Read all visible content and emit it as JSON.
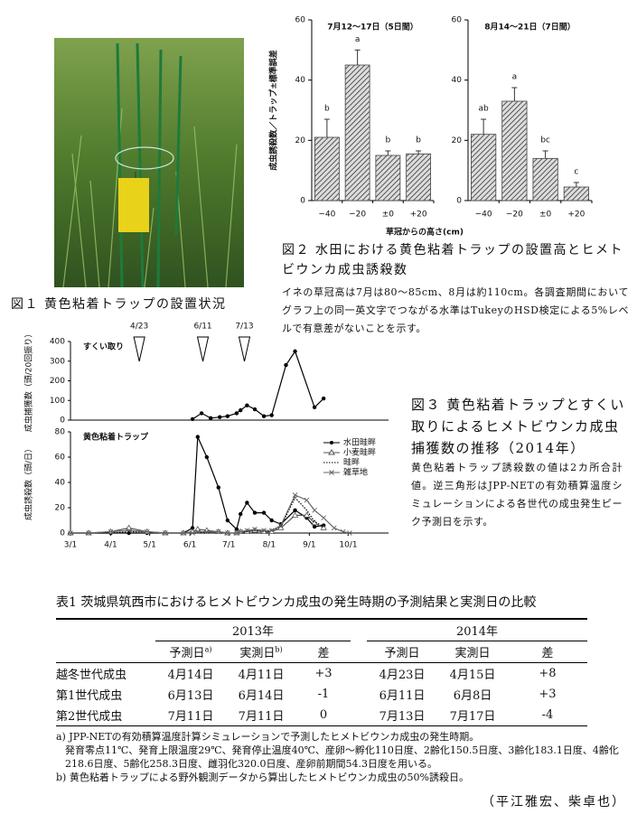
{
  "figure1": {
    "caption": "図１ 黄色粘着トラップの設置状況"
  },
  "figure2": {
    "caption": "図２ 水田における黄色粘着トラップの設置高とヒメトビウンカ成虫誘殺数",
    "note": "イネの草冠高は7月は80〜85cm、8月は約110cm。各調査期間においてグラフ上の同一英文字でつながる水準はTukeyのHSD検定による5%レベルで有意差がないことを示す。",
    "x_label": "草冠からの高さ(cm)"
  },
  "figure3": {
    "caption": "図３ 黄色粘着トラップとすくい取りによるヒメトビウンカ成虫捕獲数の推移（2014年）",
    "note": "黄色粘着トラップ誘殺数の値は2カ所合計値。逆三角形はJPP-NETの有効積算温度シミュレーションによる各世代の成虫発生ピーク予測日を示す。"
  },
  "chart_data": [
    {
      "type": "bar",
      "title": "7月12〜17日（5日間）",
      "y_label": "成虫誘殺数／トラップ±標準誤差",
      "categories": [
        "−40",
        "−20",
        "±0",
        "+20"
      ],
      "values": [
        21,
        45,
        15,
        15.5
      ],
      "errors": [
        6,
        5,
        1.5,
        1
      ],
      "annotations": [
        "b",
        "a",
        "b",
        "b"
      ],
      "color": "#444",
      "ylim": [
        0,
        60
      ],
      "yticks": [
        0,
        20,
        40,
        60
      ]
    },
    {
      "type": "bar",
      "title": "8月14〜21日（7日間）",
      "categories": [
        "−40",
        "−20",
        "±0",
        "+20"
      ],
      "values": [
        22,
        33,
        14,
        4.5
      ],
      "errors": [
        5,
        4.5,
        2.5,
        1.5
      ],
      "annotations": [
        "ab",
        "a",
        "bc",
        "c"
      ],
      "color": "#444",
      "ylim": [
        0,
        60
      ],
      "yticks": [
        0,
        20,
        40,
        60
      ]
    },
    {
      "type": "line",
      "label": "すくい取り",
      "y_label": "成虫捕獲数（頭/20回振り）",
      "x": [
        "6/3",
        "6/10",
        "6/17",
        "6/24",
        "6/30",
        "7/7",
        "7/10",
        "7/15",
        "7/21",
        "7/28",
        "8/3",
        "8/14",
        "8/21",
        "9/5",
        "9/12"
      ],
      "values": [
        5,
        35,
        10,
        15,
        20,
        35,
        50,
        75,
        55,
        20,
        25,
        280,
        350,
        65,
        110
      ],
      "color": "#000",
      "xlim": [
        "3/1",
        "11/1"
      ],
      "ylim": [
        0,
        400
      ],
      "yticks": [
        0,
        100,
        200,
        300,
        400
      ],
      "peaks": [
        "4/23",
        "6/11",
        "7/13"
      ]
    },
    {
      "type": "line",
      "label": "黄色粘着トラップ",
      "y_label": "成虫誘殺数（頭/日）",
      "x": [
        "3/1",
        "3/15",
        "4/1",
        "4/15",
        "4/29",
        "5/13",
        "5/27",
        "6/3",
        "6/7",
        "6/14",
        "6/23",
        "6/30",
        "7/7",
        "7/10",
        "7/15",
        "7/21",
        "7/28",
        "8/3",
        "8/10",
        "8/21",
        "8/30",
        "9/5",
        "9/12",
        "9/20",
        "9/27",
        "10/2"
      ],
      "series": [
        {
          "name": "水田畦畔",
          "color": "#000",
          "marker": "circle",
          "dash": false,
          "values": [
            0,
            0,
            0,
            0,
            0,
            0,
            0,
            4,
            76,
            60,
            36,
            10,
            3,
            15,
            24,
            16,
            16,
            10,
            7,
            18,
            12,
            5,
            6,
            null,
            null,
            null
          ]
        },
        {
          "name": "小麦畦畔",
          "color": "#555",
          "marker": "triangle",
          "dash": false,
          "values": [
            0,
            0,
            1,
            4,
            1,
            0,
            0,
            1,
            3,
            2,
            1,
            0,
            0,
            1,
            1,
            2,
            1,
            1,
            4,
            14,
            14,
            8,
            4,
            null,
            null,
            null
          ]
        },
        {
          "name": "畦畔",
          "color": "#000",
          "marker": "none",
          "dash": true,
          "values": [
            0,
            0,
            0,
            1,
            1,
            0,
            0,
            0,
            0,
            1,
            1,
            0,
            0,
            1,
            1,
            2,
            1,
            2,
            5,
            28,
            18,
            9,
            5,
            null,
            null,
            null
          ]
        },
        {
          "name": "雑草地",
          "color": "#666",
          "marker": "cross",
          "dash": false,
          "values": [
            0,
            0,
            1,
            2,
            1,
            0,
            0,
            0,
            1,
            1,
            1,
            0,
            0,
            1,
            2,
            3,
            2,
            2,
            6,
            30,
            26,
            18,
            12,
            4,
            1,
            0
          ]
        }
      ],
      "xlim": [
        "3/1",
        "11/1"
      ],
      "xticks": [
        "3/1",
        "4/1",
        "5/1",
        "6/1",
        "7/1",
        "8/1",
        "9/1",
        "10/1"
      ],
      "ylim": [
        0,
        80
      ],
      "yticks": [
        0,
        20,
        40,
        60,
        80
      ]
    }
  ],
  "table1": {
    "title": "表1 茨城県筑西市におけるヒメトビウンカ成虫の発生時期の予測結果と実測日の比較",
    "groups": [
      "2013年",
      "2014年"
    ],
    "columns": [
      {
        "text": "予測日",
        "sup": "a)"
      },
      {
        "text": "実測日",
        "sup": "b)"
      },
      {
        "text": "差"
      },
      {
        "text": "予測日"
      },
      {
        "text": "実測日"
      },
      {
        "text": "差"
      }
    ],
    "rows": [
      [
        "越冬世代成虫",
        "4月14日",
        "4月11日",
        "+3",
        "4月23日",
        "4月15日",
        "+8"
      ],
      [
        "第1世代成虫",
        "6月13日",
        "6月14日",
        "-1",
        "6月11日",
        "6月8日",
        "+3"
      ],
      [
        "第2世代成虫",
        "7月11日",
        "7月11日",
        "0",
        "7月13日",
        "7月17日",
        "-4"
      ]
    ],
    "notes": [
      "a) JPP-NETの有効積算温度計算シミュレーションで予測したヒメトビウンカ成虫の発生時期。",
      "発育零点11℃、発育上限温度29℃、発育停止温度40℃、産卵〜孵化110日度、2齢化150.5日度、3齢化183.1日度、4齢化218.6日度、5齢化258.3日度、雌羽化320.0日度、産卵前期間54.3日度を用いる。",
      "b) 黄色粘着トラップによる野外観測データから算出したヒメトビウンカ成虫の50%誘殺日。"
    ]
  },
  "author": "（平江雅宏、柴卓也）"
}
